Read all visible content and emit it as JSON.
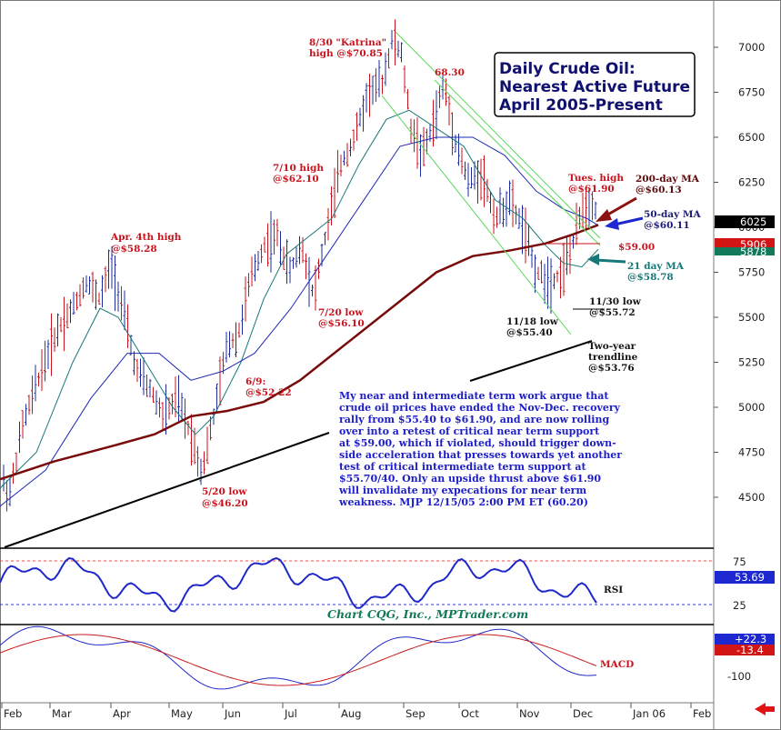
{
  "title": {
    "line1": "Daily Crude Oil:",
    "line2": "Nearest Active Future",
    "line3": "April 2005-Present"
  },
  "chart_data": [
    {
      "type": "ohlc",
      "panel": "price",
      "ylim": [
        4250,
        7200
      ],
      "y_ticks": [
        "7000",
        "6750",
        "6500",
        "6250",
        "6000",
        "5750",
        "5500",
        "5250",
        "5000",
        "4750",
        "4500"
      ],
      "x_months": [
        "Feb",
        "Mar",
        "Apr",
        "May",
        "Jun",
        "Jul",
        "Aug",
        "Sep",
        "Oct",
        "Nov",
        "Dec",
        "Jan 06",
        "Feb"
      ],
      "price_path": [
        [
          0,
          4650
        ],
        [
          10,
          4500
        ],
        [
          25,
          4900
        ],
        [
          45,
          5200
        ],
        [
          65,
          5450
        ],
        [
          80,
          5550
        ],
        [
          95,
          5700
        ],
        [
          110,
          5600
        ],
        [
          122,
          5800
        ],
        [
          135,
          5550
        ],
        [
          150,
          5200
        ],
        [
          165,
          5100
        ],
        [
          180,
          4950
        ],
        [
          195,
          5050
        ],
        [
          210,
          4850
        ],
        [
          222,
          4640
        ],
        [
          235,
          4950
        ],
        [
          250,
          5350
        ],
        [
          262,
          5400
        ],
        [
          275,
          5700
        ],
        [
          290,
          5900
        ],
        [
          305,
          5950
        ],
        [
          318,
          5750
        ],
        [
          332,
          5900
        ],
        [
          345,
          5620
        ],
        [
          360,
          6000
        ],
        [
          375,
          6350
        ],
        [
          390,
          6500
        ],
        [
          405,
          6750
        ],
        [
          420,
          6800
        ],
        [
          432,
          7050
        ],
        [
          442,
          6950
        ],
        [
          452,
          6550
        ],
        [
          465,
          6400
        ],
        [
          478,
          6600
        ],
        [
          488,
          6800
        ],
        [
          500,
          6500
        ],
        [
          515,
          6250
        ],
        [
          530,
          6300
        ],
        [
          545,
          6050
        ],
        [
          560,
          6150
        ],
        [
          575,
          6000
        ],
        [
          590,
          5750
        ],
        [
          605,
          5700
        ],
        [
          618,
          5750
        ],
        [
          630,
          5900
        ],
        [
          640,
          6100
        ],
        [
          652,
          6150
        ],
        [
          658,
          6050
        ]
      ],
      "series": [
        {
          "name": "21 day MA",
          "color": "#167878",
          "points": [
            [
              0,
              4550
            ],
            [
              40,
              4750
            ],
            [
              80,
              5250
            ],
            [
              110,
              5550
            ],
            [
              130,
              5500
            ],
            [
              160,
              5250
            ],
            [
              190,
              5000
            ],
            [
              215,
              4850
            ],
            [
              235,
              4950
            ],
            [
              265,
              5250
            ],
            [
              290,
              5600
            ],
            [
              315,
              5850
            ],
            [
              340,
              5950
            ],
            [
              365,
              6050
            ],
            [
              395,
              6350
            ],
            [
              425,
              6600
            ],
            [
              450,
              6650
            ],
            [
              480,
              6550
            ],
            [
              510,
              6450
            ],
            [
              545,
              6150
            ],
            [
              575,
              6050
            ],
            [
              600,
              5900
            ],
            [
              620,
              5800
            ],
            [
              640,
              5780
            ],
            [
              658,
              5878
            ]
          ]
        },
        {
          "name": "50-day MA",
          "color": "#1e28b4",
          "points": [
            [
              0,
              4450
            ],
            [
              50,
              4650
            ],
            [
              100,
              5050
            ],
            [
              140,
              5300
            ],
            [
              175,
              5300
            ],
            [
              210,
              5150
            ],
            [
              245,
              5200
            ],
            [
              280,
              5300
            ],
            [
              320,
              5550
            ],
            [
              360,
              5850
            ],
            [
              400,
              6150
            ],
            [
              440,
              6450
            ],
            [
              480,
              6500
            ],
            [
              520,
              6500
            ],
            [
              555,
              6400
            ],
            [
              590,
              6200
            ],
            [
              620,
              6100
            ],
            [
              645,
              6050
            ],
            [
              658,
              6011
            ]
          ]
        },
        {
          "name": "200-day MA",
          "color": "#780a0a",
          "points": [
            [
              0,
              4600
            ],
            [
              60,
              4700
            ],
            [
              120,
              4780
            ],
            [
              170,
              4850
            ],
            [
              210,
              4950
            ],
            [
              250,
              4980
            ],
            [
              290,
              5030
            ],
            [
              330,
              5150
            ],
            [
              380,
              5350
            ],
            [
              430,
              5550
            ],
            [
              480,
              5750
            ],
            [
              520,
              5840
            ],
            [
              560,
              5870
            ],
            [
              600,
              5910
            ],
            [
              630,
              5960
            ],
            [
              658,
              6013
            ]
          ]
        }
      ]
    },
    {
      "type": "line",
      "panel": "RSI",
      "name": "RSI",
      "y_ticks": [
        "75",
        "25"
      ],
      "levels": [
        75,
        25
      ]
    },
    {
      "type": "line",
      "panel": "MACD",
      "name": "MACD",
      "y_ticks": [
        "-100"
      ]
    }
  ],
  "annotations": {
    "katrina": [
      "8/30 \"Katrina\"",
      "high @$70.85"
    ],
    "a6830": "68.30",
    "apr4": [
      "Apr. 4th high",
      "@$58.28"
    ],
    "jul10": [
      "7/10 high",
      "@$62.10"
    ],
    "jul20": [
      "7/20 low",
      "@$56.10"
    ],
    "jun9": [
      "6/9:",
      "@$52.22"
    ],
    "may20": [
      "5/20 low",
      "@$46.20"
    ],
    "nov18": [
      "11/18  low",
      "@$55.40"
    ],
    "nov30": [
      "11/30 low",
      "@$55.72"
    ],
    "tues": [
      "Tues. high",
      "@$61.90"
    ],
    "ma200": [
      "200-day MA",
      "@$60.13"
    ],
    "ma50": [
      "50-day MA",
      "@$60.11"
    ],
    "s5900": "$59.00",
    "ma21": [
      "21 day MA",
      "@$58.78"
    ],
    "trend": [
      "Two-year",
      "trendline",
      "@$53.76"
    ]
  },
  "commentary": [
    "My near and intermediate term work argue that",
    "crude oil prices have ended the Nov-Dec. recovery",
    "rally from $55.40 to $61.90, and are now rolling",
    "over into a retest of critical near term support",
    "at $59.00, which if violated, should trigger down-",
    "side acceleration that presses towards yet another",
    "test of critical intermediate term support at",
    "$55.70/40. Only an upside thrust above $61.90",
    "will invalidate my expecations for near term",
    "weakness.  MJP 12/15/05 2:00 PM ET  (60.20)"
  ],
  "credit": "Chart CQG, Inc., MPTrader.com",
  "badges": {
    "b6025": "6025",
    "b5906": "5906",
    "b5878": "5878",
    "rsi": "53.69",
    "macd1": "+22.3",
    "macd2": "-13.4"
  },
  "colors": {
    "price_bar": "#1e2ca0",
    "price_bar_red": "#c8141e",
    "ma21": "#167878",
    "ma50": "#1e28b4",
    "ma200": "#780a0a",
    "channel": "#58d858",
    "trend": "#000000"
  }
}
